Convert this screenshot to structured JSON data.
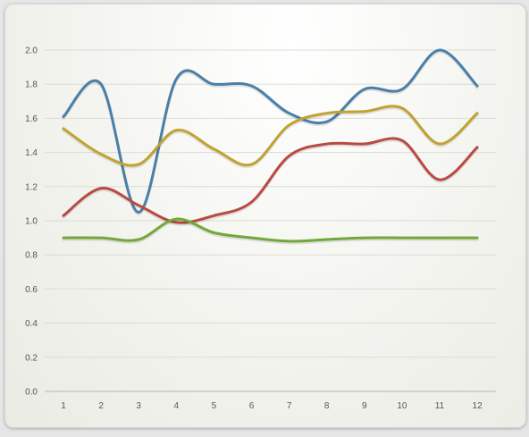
{
  "chart_data": {
    "type": "line",
    "title": "",
    "xlabel": "",
    "ylabel": "",
    "x": [
      "1",
      "2",
      "3",
      "4",
      "5",
      "6",
      "7",
      "8",
      "9",
      "10",
      "11",
      "12"
    ],
    "ylim": [
      0,
      2.0
    ],
    "yticks": [
      "0.0",
      "0.2",
      "0.4",
      "0.6",
      "0.8",
      "1.0",
      "1.2",
      "1.4",
      "1.6",
      "1.8",
      "2.0"
    ],
    "ytick_values": [
      0,
      0.2,
      0.4,
      0.6,
      0.8,
      1.0,
      1.2,
      1.4,
      1.6,
      1.8,
      2.0
    ],
    "grid": true,
    "legend": "none",
    "smooth": true,
    "series": [
      {
        "color": "#4a7fa8",
        "values": [
          1.61,
          1.8,
          1.05,
          1.83,
          1.8,
          1.79,
          1.63,
          1.58,
          1.77,
          1.77,
          2.0,
          1.79
        ]
      },
      {
        "color": "#c0a232",
        "values": [
          1.54,
          1.39,
          1.33,
          1.53,
          1.42,
          1.33,
          1.56,
          1.63,
          1.64,
          1.66,
          1.45,
          1.63
        ]
      },
      {
        "color": "#b84a42",
        "values": [
          1.03,
          1.19,
          1.09,
          0.99,
          1.03,
          1.11,
          1.38,
          1.45,
          1.45,
          1.47,
          1.24,
          1.43
        ]
      },
      {
        "color": "#72a83a",
        "values": [
          0.9,
          0.9,
          0.89,
          1.01,
          0.93,
          0.9,
          0.88,
          0.89,
          0.9,
          0.9,
          0.9,
          0.9
        ]
      }
    ]
  }
}
